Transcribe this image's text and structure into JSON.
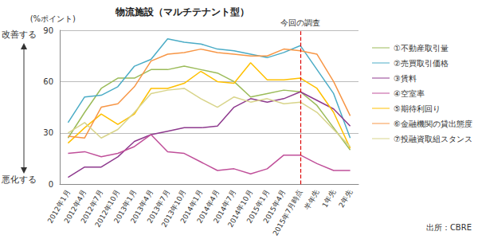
{
  "chart_data": {
    "type": "line",
    "title": "物流施設（マルチテナント型）",
    "y_label": "(%ポイント)",
    "y_direction_labels": {
      "top": "改善する",
      "bottom": "悪化する"
    },
    "source": "出所：CBRE",
    "annotation": {
      "text": "今回の調査",
      "category": "2015年7月時点"
    },
    "categories": [
      "2012年1月",
      "2012年4月",
      "2012年7月",
      "2012年10月",
      "2013年1月",
      "2013年4月",
      "2013年7月",
      "2013年10月",
      "2014年1月",
      "2014年4月",
      "2014年7月",
      "2014年10月",
      "2015年1月",
      "2015年4月",
      "2015年7月時点",
      "半年先",
      "1年先",
      "2年先"
    ],
    "ylim": [
      0,
      90
    ],
    "yticks": [
      0,
      30,
      60,
      90
    ],
    "grid": true,
    "legend": "right",
    "marker": "none",
    "series": [
      {
        "name": "①不動産取引量",
        "color": "#9bbb59",
        "values": [
          27,
          42,
          56,
          62,
          62,
          67,
          67,
          69,
          67,
          65,
          60,
          51,
          53,
          55,
          54,
          46,
          33,
          20
        ]
      },
      {
        "name": "②売買取引価格",
        "color": "#4bacc6",
        "values": [
          36,
          51,
          52,
          57,
          69,
          73,
          85,
          83,
          82,
          79,
          78,
          76,
          74,
          77,
          81,
          67,
          53,
          27
        ]
      },
      {
        "name": "③賃料",
        "color": "#8e3a8e",
        "values": [
          4,
          10,
          10,
          16,
          25,
          29,
          31,
          33,
          33,
          34,
          45,
          50,
          48,
          50,
          54,
          49,
          44,
          34
        ]
      },
      {
        "name": "④空室率",
        "color": "#c0509a",
        "values": [
          18,
          19,
          16,
          18,
          22,
          29,
          19,
          18,
          13,
          8,
          9,
          6,
          9,
          17,
          17,
          12,
          8,
          8
        ]
      },
      {
        "name": "⑤期待利回り",
        "color": "#ffc000",
        "values": [
          24,
          33,
          41,
          35,
          41,
          56,
          56,
          59,
          66,
          60,
          59,
          71,
          61,
          61,
          62,
          56,
          42,
          21
        ]
      },
      {
        "name": "⑥金融機関の貸出態度",
        "color": "#f79646",
        "values": [
          28,
          27,
          45,
          47,
          57,
          72,
          76,
          77,
          79,
          77,
          76,
          75,
          75,
          79,
          78,
          76,
          60,
          40
        ]
      },
      {
        "name": "⑦投融資取組スタンス",
        "color": "#d8d48a",
        "values": [
          30,
          36,
          27,
          32,
          42,
          53,
          55,
          56,
          50,
          45,
          51,
          48,
          50,
          47,
          48,
          42,
          32,
          22
        ]
      }
    ]
  }
}
